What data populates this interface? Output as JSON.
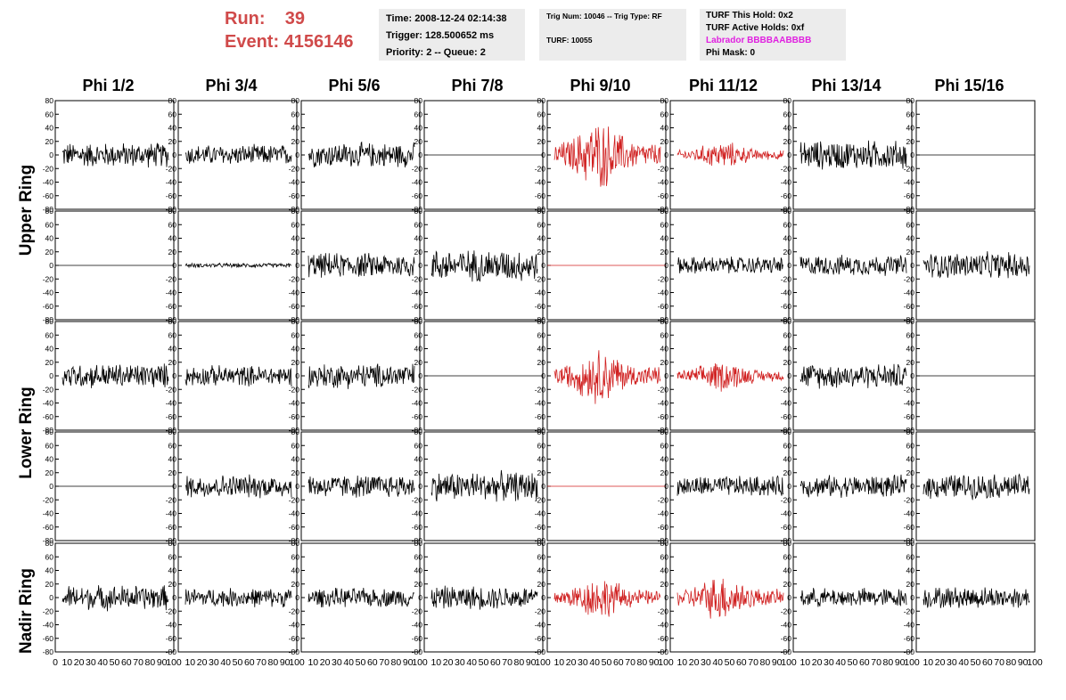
{
  "header": {
    "run_label": "Run:",
    "run_value": "39",
    "event_label": "Event:",
    "event_value": "4156146"
  },
  "info1": {
    "time": "Time: 2008-12-24 02:14:38",
    "trigger": "Trigger: 128.500652 ms",
    "priority": "Priority: 2 -- Queue: 2"
  },
  "info2": {
    "trig": "Trig Num: 10046 -- Trig Type: RF",
    "turf": "TURF: 10055"
  },
  "info3": {
    "this_hold": "TURF This Hold: 0x2",
    "active_holds": "TURF Active Holds: 0xf",
    "labrador": "Labrador BBBBAABBBB",
    "phi_mask": "Phi Mask: 0"
  },
  "columns": [
    "Phi 1/2",
    "Phi 3/4",
    "Phi 5/6",
    "Phi 7/8",
    "Phi 9/10",
    "Phi 11/12",
    "Phi 13/14",
    "Phi 15/16"
  ],
  "rings": [
    "Upper Ring",
    "Lower Ring",
    "Nadir Ring"
  ],
  "colors": {
    "normal": "#000000",
    "triggered": "#d02020",
    "header": "#d04a4a",
    "labrador": "#e020e0",
    "infobox": "#ececec"
  },
  "chart_data": {
    "type": "line",
    "grid": "8 columns x 5 rows of waveform panels",
    "ylim": [
      -80,
      80
    ],
    "xlim": [
      0,
      100
    ],
    "y_ticks": [
      "80",
      "60",
      "40",
      "20",
      "0",
      "-20",
      "-40",
      "-60",
      "-80"
    ],
    "x_ticks": [
      "0",
      "10",
      "20",
      "30",
      "40",
      "50",
      "60",
      "70",
      "80",
      "90",
      "100"
    ],
    "panels": [
      {
        "row": 0,
        "col": 0,
        "amp": 17,
        "flat": false,
        "red": false
      },
      {
        "row": 0,
        "col": 1,
        "amp": 14,
        "flat": false,
        "red": false
      },
      {
        "row": 0,
        "col": 2,
        "amp": 17,
        "flat": false,
        "red": false
      },
      {
        "row": 0,
        "col": 3,
        "amp": 0,
        "flat": true,
        "red": false
      },
      {
        "row": 0,
        "col": 4,
        "amp": 35,
        "flat": false,
        "red": true
      },
      {
        "row": 0,
        "col": 5,
        "amp": 14,
        "flat": false,
        "red": true
      },
      {
        "row": 0,
        "col": 6,
        "amp": 20,
        "flat": false,
        "red": false
      },
      {
        "row": 0,
        "col": 7,
        "amp": 0,
        "flat": true,
        "red": false
      },
      {
        "row": 1,
        "col": 0,
        "amp": 0,
        "flat": true,
        "red": false
      },
      {
        "row": 1,
        "col": 1,
        "amp": 3,
        "flat": false,
        "red": false
      },
      {
        "row": 1,
        "col": 2,
        "amp": 17,
        "flat": false,
        "red": false
      },
      {
        "row": 1,
        "col": 3,
        "amp": 22,
        "flat": false,
        "red": false
      },
      {
        "row": 1,
        "col": 4,
        "amp": 0,
        "flat": true,
        "red": true
      },
      {
        "row": 1,
        "col": 5,
        "amp": 12,
        "flat": false,
        "red": false
      },
      {
        "row": 1,
        "col": 6,
        "amp": 14,
        "flat": false,
        "red": false
      },
      {
        "row": 1,
        "col": 7,
        "amp": 18,
        "flat": false,
        "red": false
      },
      {
        "row": 2,
        "col": 0,
        "amp": 17,
        "flat": false,
        "red": false
      },
      {
        "row": 2,
        "col": 1,
        "amp": 14,
        "flat": false,
        "red": false
      },
      {
        "row": 2,
        "col": 2,
        "amp": 17,
        "flat": false,
        "red": false
      },
      {
        "row": 2,
        "col": 3,
        "amp": 0,
        "flat": true,
        "red": false
      },
      {
        "row": 2,
        "col": 4,
        "amp": 28,
        "flat": false,
        "red": true
      },
      {
        "row": 2,
        "col": 5,
        "amp": 16,
        "flat": false,
        "red": true
      },
      {
        "row": 2,
        "col": 6,
        "amp": 17,
        "flat": false,
        "red": false
      },
      {
        "row": 2,
        "col": 7,
        "amp": 0,
        "flat": true,
        "red": false
      },
      {
        "row": 3,
        "col": 0,
        "amp": 0,
        "flat": true,
        "red": false
      },
      {
        "row": 3,
        "col": 1,
        "amp": 16,
        "flat": false,
        "red": false
      },
      {
        "row": 3,
        "col": 2,
        "amp": 16,
        "flat": false,
        "red": false
      },
      {
        "row": 3,
        "col": 3,
        "amp": 20,
        "flat": false,
        "red": false
      },
      {
        "row": 3,
        "col": 4,
        "amp": 0,
        "flat": true,
        "red": true
      },
      {
        "row": 3,
        "col": 5,
        "amp": 14,
        "flat": false,
        "red": false
      },
      {
        "row": 3,
        "col": 6,
        "amp": 15,
        "flat": false,
        "red": false
      },
      {
        "row": 3,
        "col": 7,
        "amp": 17,
        "flat": false,
        "red": false
      },
      {
        "row": 4,
        "col": 0,
        "amp": 17,
        "flat": false,
        "red": false
      },
      {
        "row": 4,
        "col": 1,
        "amp": 13,
        "flat": false,
        "red": false
      },
      {
        "row": 4,
        "col": 2,
        "amp": 13,
        "flat": false,
        "red": false
      },
      {
        "row": 4,
        "col": 3,
        "amp": 16,
        "flat": false,
        "red": false
      },
      {
        "row": 4,
        "col": 4,
        "amp": 22,
        "flat": false,
        "red": true
      },
      {
        "row": 4,
        "col": 5,
        "amp": 24,
        "flat": false,
        "red": true
      },
      {
        "row": 4,
        "col": 6,
        "amp": 13,
        "flat": false,
        "red": false
      },
      {
        "row": 4,
        "col": 7,
        "amp": 15,
        "flat": false,
        "red": false
      }
    ]
  }
}
